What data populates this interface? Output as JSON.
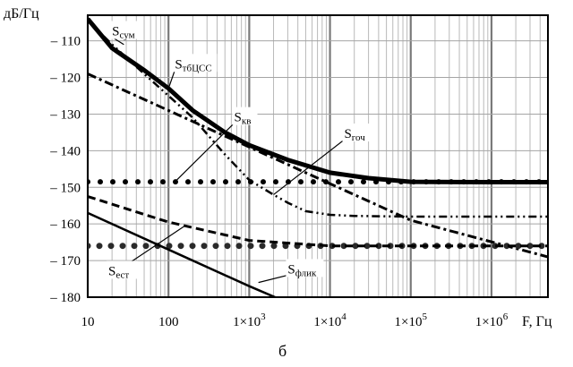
{
  "chart_data": {
    "type": "line",
    "ylabel": "дБ/Гц",
    "xlabel": "F, Гц",
    "caption": "б",
    "x_scale": "log",
    "xlim": [
      10,
      5000000
    ],
    "ylim": [
      -180,
      -103
    ],
    "grid": true,
    "y_ticks": [
      "– 110",
      "– 120",
      "– 130",
      "– 140",
      "– 150",
      "– 160",
      "– 170",
      "– 180"
    ],
    "y_tick_values": [
      -110,
      -120,
      -130,
      -140,
      -150,
      -160,
      -170,
      -180
    ],
    "x_ticks": [
      {
        "value": 10,
        "base": "10",
        "exp": ""
      },
      {
        "value": 100,
        "base": "100",
        "exp": ""
      },
      {
        "value": 1000,
        "base": "1×10",
        "exp": "3"
      },
      {
        "value": 10000,
        "base": "1×10",
        "exp": "4"
      },
      {
        "value": 100000,
        "base": "1×10",
        "exp": "5"
      },
      {
        "value": 1000000,
        "base": "1×10",
        "exp": "6"
      }
    ],
    "series": [
      {
        "name": "Sсум",
        "main": "S",
        "sub": "сум",
        "style": "thick",
        "x": [
          10,
          20,
          50,
          100,
          200,
          500,
          1000,
          3000,
          10000,
          30000,
          100000,
          1000000,
          5000000
        ],
        "y": [
          -104,
          -112,
          -118,
          -123,
          -129,
          -135,
          -138.5,
          -142.5,
          -146,
          -147.5,
          -148.5,
          -148.6,
          -148.6
        ]
      },
      {
        "name": "SтбЦСС",
        "main": "S",
        "sub": "тбЦСС",
        "style": "dashdotdot",
        "x": [
          10,
          20,
          50,
          100,
          200,
          500,
          1000,
          2000,
          3000,
          5000,
          10000,
          20000,
          100000,
          1000000,
          5000000
        ],
        "y": [
          -104.5,
          -111,
          -119,
          -125,
          -131,
          -141,
          -148,
          -152,
          -154.2,
          -156.5,
          -157.5,
          -157.8,
          -158,
          -158,
          -158
        ]
      },
      {
        "name": "Sкв",
        "main": "S",
        "sub": "кв",
        "style": "dots",
        "x": [
          10,
          5000000
        ],
        "y": [
          -148.5,
          -148.5
        ]
      },
      {
        "name": "Sгоч",
        "main": "S",
        "sub": "гоч",
        "style": "dashdot",
        "x": [
          10,
          100,
          1000,
          10000,
          100000,
          5000000
        ],
        "y": [
          -119,
          -129,
          -139,
          -149,
          -159,
          -169
        ]
      },
      {
        "name": "Sфлик",
        "main": "S",
        "sub": "флик",
        "style": "dots-big",
        "x": [
          10,
          5000000
        ],
        "y": [
          -166,
          -166
        ]
      },
      {
        "name": "Sест",
        "main": "S",
        "sub": "ест",
        "style": "dashed",
        "x": [
          10,
          100,
          1000,
          10000,
          100000,
          5000000
        ],
        "y": [
          -152.5,
          -159.5,
          -164.5,
          -166,
          -166,
          -166
        ]
      },
      {
        "name": "Sфлик-line",
        "main": "",
        "sub": "",
        "style": "solid",
        "x": [
          10,
          100,
          1000,
          3000
        ],
        "y": [
          -157,
          -167,
          -177,
          -181.5
        ]
      }
    ],
    "annotations": [
      {
        "main": "S",
        "sub": "сум",
        "x": 28,
        "y": -111,
        "tx": 20,
        "ty": -108.5
      },
      {
        "main": "S",
        "sub": "тбЦСС",
        "x": 100,
        "y": -123,
        "tx": 120,
        "ty": -117.5
      },
      {
        "main": "S",
        "sub": "кв",
        "x": 120,
        "y": -148.5,
        "tx": 650,
        "ty": -132
      },
      {
        "main": "S",
        "sub": "гоч",
        "x": 2000,
        "y": -152,
        "tx": 15000,
        "ty": -136.5
      },
      {
        "main": "S",
        "sub": "ест",
        "x": 160,
        "y": -160.5,
        "tx": 18,
        "ty": -174
      },
      {
        "main": "S",
        "sub": "флик",
        "x": 1300,
        "y": -176,
        "tx": 3000,
        "ty": -173.5
      }
    ]
  }
}
